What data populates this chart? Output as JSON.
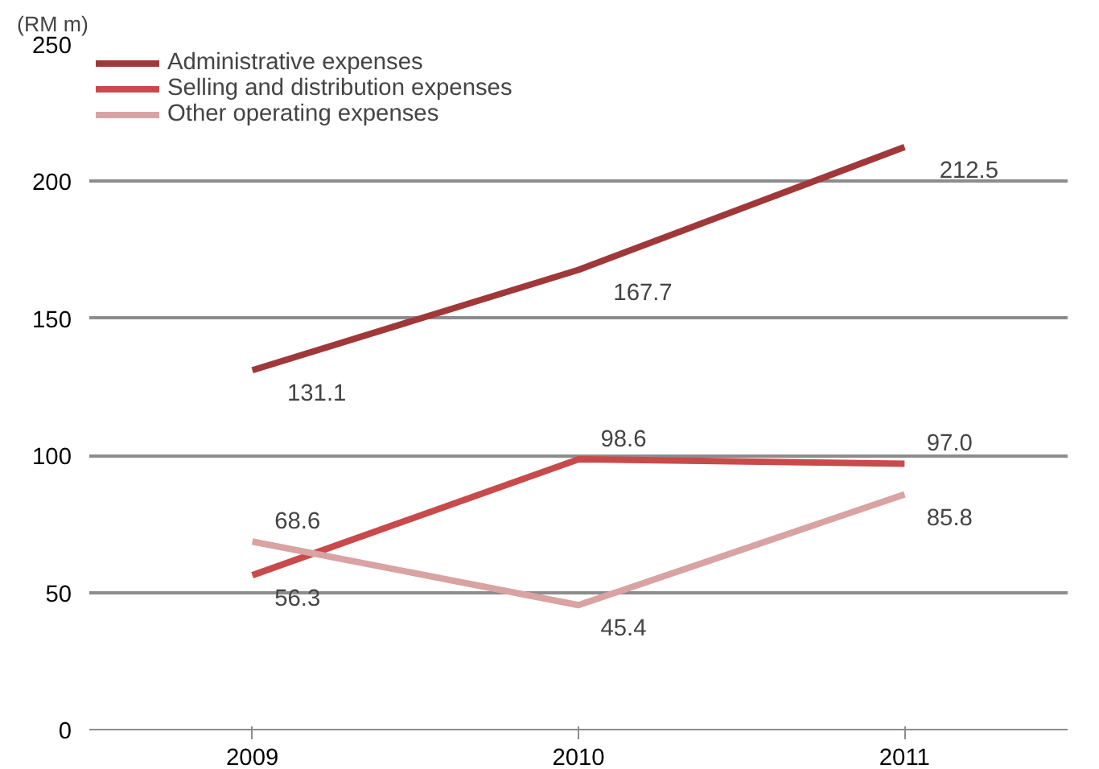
{
  "chart_data": {
    "type": "line",
    "ylabel": "(RM m)",
    "categories": [
      "2009",
      "2010",
      "2011"
    ],
    "series": [
      {
        "name": "Administrative expenses",
        "color": "#a0383a",
        "values": [
          131.1,
          167.7,
          212.5
        ],
        "value_labels": [
          "131.1",
          "167.7",
          "212.5"
        ]
      },
      {
        "name": "Selling and distribution expenses",
        "color": "#c94a4a",
        "values": [
          56.3,
          98.6,
          97.0
        ],
        "value_labels": [
          "56.3",
          "98.6",
          "97.0"
        ]
      },
      {
        "name": "Other operating expenses",
        "color": "#d9a3a3",
        "values": [
          68.6,
          45.4,
          85.8
        ],
        "value_labels": [
          "68.6",
          "45.4",
          "85.8"
        ]
      }
    ],
    "ylim": [
      0,
      250
    ],
    "yticks": [
      0,
      50,
      100,
      150,
      200,
      250
    ],
    "grid": "y",
    "legend": "top left",
    "marker": "none",
    "line_style": "solid"
  }
}
